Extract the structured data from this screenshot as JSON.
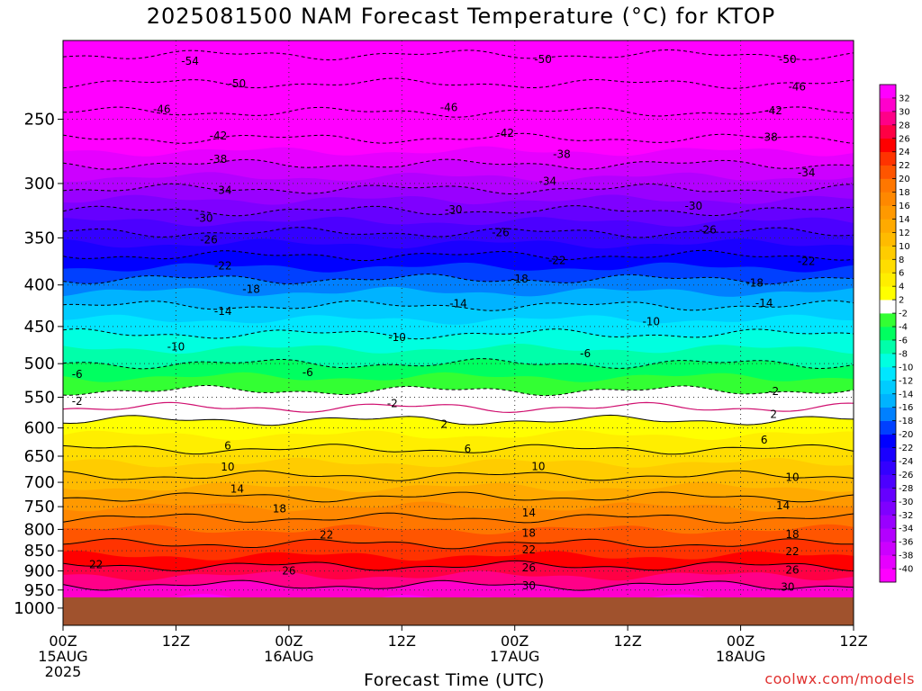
{
  "chart_data": {
    "type": "heatmap",
    "title": "2025081500 NAM Forecast Temperature (°C) for KTOP",
    "xlabel": "Forecast Time (UTC)",
    "ylabel": "",
    "y_axis": {
      "scale": "log",
      "reversed": true,
      "tick_labels": [
        "250",
        "300",
        "350",
        "400",
        "450",
        "500",
        "550",
        "600",
        "650",
        "700",
        "750",
        "800",
        "850",
        "900",
        "950",
        "1000"
      ],
      "range": [
        200,
        1050
      ]
    },
    "x_axis": {
      "range_hours": [
        0,
        84
      ],
      "ticks": [
        {
          "hour": 0,
          "label": "00Z",
          "date": "15AUG",
          "year": "2025"
        },
        {
          "hour": 12,
          "label": "12Z",
          "date": "",
          "year": ""
        },
        {
          "hour": 24,
          "label": "00Z",
          "date": "16AUG",
          "year": ""
        },
        {
          "hour": 36,
          "label": "12Z",
          "date": "",
          "year": ""
        },
        {
          "hour": 48,
          "label": "00Z",
          "date": "17AUG",
          "year": ""
        },
        {
          "hour": 60,
          "label": "12Z",
          "date": "",
          "year": ""
        },
        {
          "hour": 72,
          "label": "00Z",
          "date": "18AUG",
          "year": ""
        },
        {
          "hour": 84,
          "label": "12Z",
          "date": "",
          "year": ""
        }
      ]
    },
    "grid": true,
    "ground_pressure": 970,
    "ground_color": "#a0522d",
    "profile": {
      "pressures": [
        200,
        250,
        300,
        350,
        400,
        450,
        500,
        550,
        600,
        650,
        700,
        750,
        800,
        850,
        900,
        950,
        1000
      ],
      "temperatures": [
        -56,
        -45,
        -35,
        -25,
        -17,
        -11,
        -6,
        -1,
        3,
        7,
        11,
        16,
        20,
        23,
        27,
        31,
        33
      ]
    },
    "colorbar": {
      "levels": [
        -40,
        -38,
        -36,
        -34,
        -32,
        -30,
        -28,
        -26,
        -24,
        -22,
        -20,
        -18,
        -16,
        -14,
        -12,
        -10,
        -8,
        -6,
        -4,
        -2,
        2,
        4,
        6,
        8,
        10,
        12,
        14,
        16,
        18,
        20,
        22,
        24,
        26,
        28,
        30,
        32
      ],
      "colors": [
        "#ff00ff",
        "#e600ff",
        "#cc00ff",
        "#b300ff",
        "#9900ff",
        "#7f00ff",
        "#6600ff",
        "#4c00ff",
        "#3300ff",
        "#1a00ff",
        "#0000ff",
        "#0040ff",
        "#0080ff",
        "#00b3ff",
        "#00ccff",
        "#00e6ff",
        "#00ffe0",
        "#00ffaa",
        "#00ff60",
        "#33ff33",
        "#ffffff",
        "#ffff00",
        "#ffee00",
        "#ffdd00",
        "#ffcc00",
        "#ffbb00",
        "#ffaa00",
        "#ff9900",
        "#ff8800",
        "#ff7700",
        "#ff5500",
        "#ff3300",
        "#ff0000",
        "#ff0044",
        "#ff0088",
        "#ff00cc",
        "#ff00ff"
      ]
    },
    "annotations": [
      {
        "hour": 13.5,
        "p": 212,
        "text": "-54"
      },
      {
        "hour": 51,
        "p": 211,
        "text": "-50"
      },
      {
        "hour": 77,
        "p": 211,
        "text": "-50"
      },
      {
        "hour": 18.5,
        "p": 226,
        "text": "-50"
      },
      {
        "hour": 78,
        "p": 228,
        "text": "-46"
      },
      {
        "hour": 10.5,
        "p": 243,
        "text": "-46"
      },
      {
        "hour": 41,
        "p": 242,
        "text": "-46"
      },
      {
        "hour": 75.5,
        "p": 244,
        "text": "-42"
      },
      {
        "hour": 16.5,
        "p": 262,
        "text": "-42"
      },
      {
        "hour": 47,
        "p": 260,
        "text": "-42"
      },
      {
        "hour": 75,
        "p": 263,
        "text": "-38"
      },
      {
        "hour": 16.5,
        "p": 280,
        "text": "-38"
      },
      {
        "hour": 53,
        "p": 276,
        "text": "-38"
      },
      {
        "hour": 79,
        "p": 291,
        "text": "-34"
      },
      {
        "hour": 17,
        "p": 306,
        "text": "-34"
      },
      {
        "hour": 51.5,
        "p": 298,
        "text": "-34"
      },
      {
        "hour": 15,
        "p": 331,
        "text": "-30"
      },
      {
        "hour": 41.5,
        "p": 323,
        "text": "-30"
      },
      {
        "hour": 67,
        "p": 320,
        "text": "-30"
      },
      {
        "hour": 15.5,
        "p": 352,
        "text": "-26"
      },
      {
        "hour": 46.5,
        "p": 345,
        "text": "-26"
      },
      {
        "hour": 68.5,
        "p": 342,
        "text": "-26"
      },
      {
        "hour": 17,
        "p": 379,
        "text": "-22"
      },
      {
        "hour": 52.5,
        "p": 373,
        "text": "-22"
      },
      {
        "hour": 79,
        "p": 374,
        "text": "-22"
      },
      {
        "hour": 20,
        "p": 405,
        "text": "-18"
      },
      {
        "hour": 48.5,
        "p": 393,
        "text": "-18"
      },
      {
        "hour": 73.5,
        "p": 398,
        "text": "-18"
      },
      {
        "hour": 17,
        "p": 431,
        "text": "-14"
      },
      {
        "hour": 42,
        "p": 422,
        "text": "-14"
      },
      {
        "hour": 74.5,
        "p": 421,
        "text": "-14"
      },
      {
        "hour": 12,
        "p": 477,
        "text": "-10"
      },
      {
        "hour": 35.5,
        "p": 464,
        "text": "-10"
      },
      {
        "hour": 62.5,
        "p": 444,
        "text": "-10"
      },
      {
        "hour": 1.5,
        "p": 515,
        "text": "-6"
      },
      {
        "hour": 26,
        "p": 513,
        "text": "-6"
      },
      {
        "hour": 55.5,
        "p": 486,
        "text": "-6"
      },
      {
        "hour": 1.5,
        "p": 556,
        "text": "-2"
      },
      {
        "hour": 35,
        "p": 560,
        "text": "-2"
      },
      {
        "hour": 75.5,
        "p": 541,
        "text": "-2"
      },
      {
        "hour": 40.5,
        "p": 594,
        "text": "2"
      },
      {
        "hour": 75.5,
        "p": 577,
        "text": "2"
      },
      {
        "hour": 17.5,
        "p": 631,
        "text": "6"
      },
      {
        "hour": 43,
        "p": 637,
        "text": "6"
      },
      {
        "hour": 74.5,
        "p": 621,
        "text": "6"
      },
      {
        "hour": 17.5,
        "p": 670,
        "text": "10"
      },
      {
        "hour": 50.5,
        "p": 669,
        "text": "10"
      },
      {
        "hour": 77.5,
        "p": 690,
        "text": "10"
      },
      {
        "hour": 18.5,
        "p": 713,
        "text": "14"
      },
      {
        "hour": 49.5,
        "p": 763,
        "text": "14"
      },
      {
        "hour": 76.5,
        "p": 748,
        "text": "14"
      },
      {
        "hour": 23,
        "p": 755,
        "text": "18"
      },
      {
        "hour": 49.5,
        "p": 808,
        "text": "18"
      },
      {
        "hour": 77.5,
        "p": 812,
        "text": "18"
      },
      {
        "hour": 28,
        "p": 813,
        "text": "22"
      },
      {
        "hour": 3.5,
        "p": 884,
        "text": "22"
      },
      {
        "hour": 49.5,
        "p": 848,
        "text": "22"
      },
      {
        "hour": 77.5,
        "p": 852,
        "text": "22"
      },
      {
        "hour": 24,
        "p": 900,
        "text": "26"
      },
      {
        "hour": 49.5,
        "p": 892,
        "text": "26"
      },
      {
        "hour": 77.5,
        "p": 897,
        "text": "26"
      },
      {
        "hour": 49.5,
        "p": 938,
        "text": "30"
      },
      {
        "hour": 77,
        "p": 942,
        "text": "30"
      }
    ]
  },
  "credit": "coolwx.com/models"
}
